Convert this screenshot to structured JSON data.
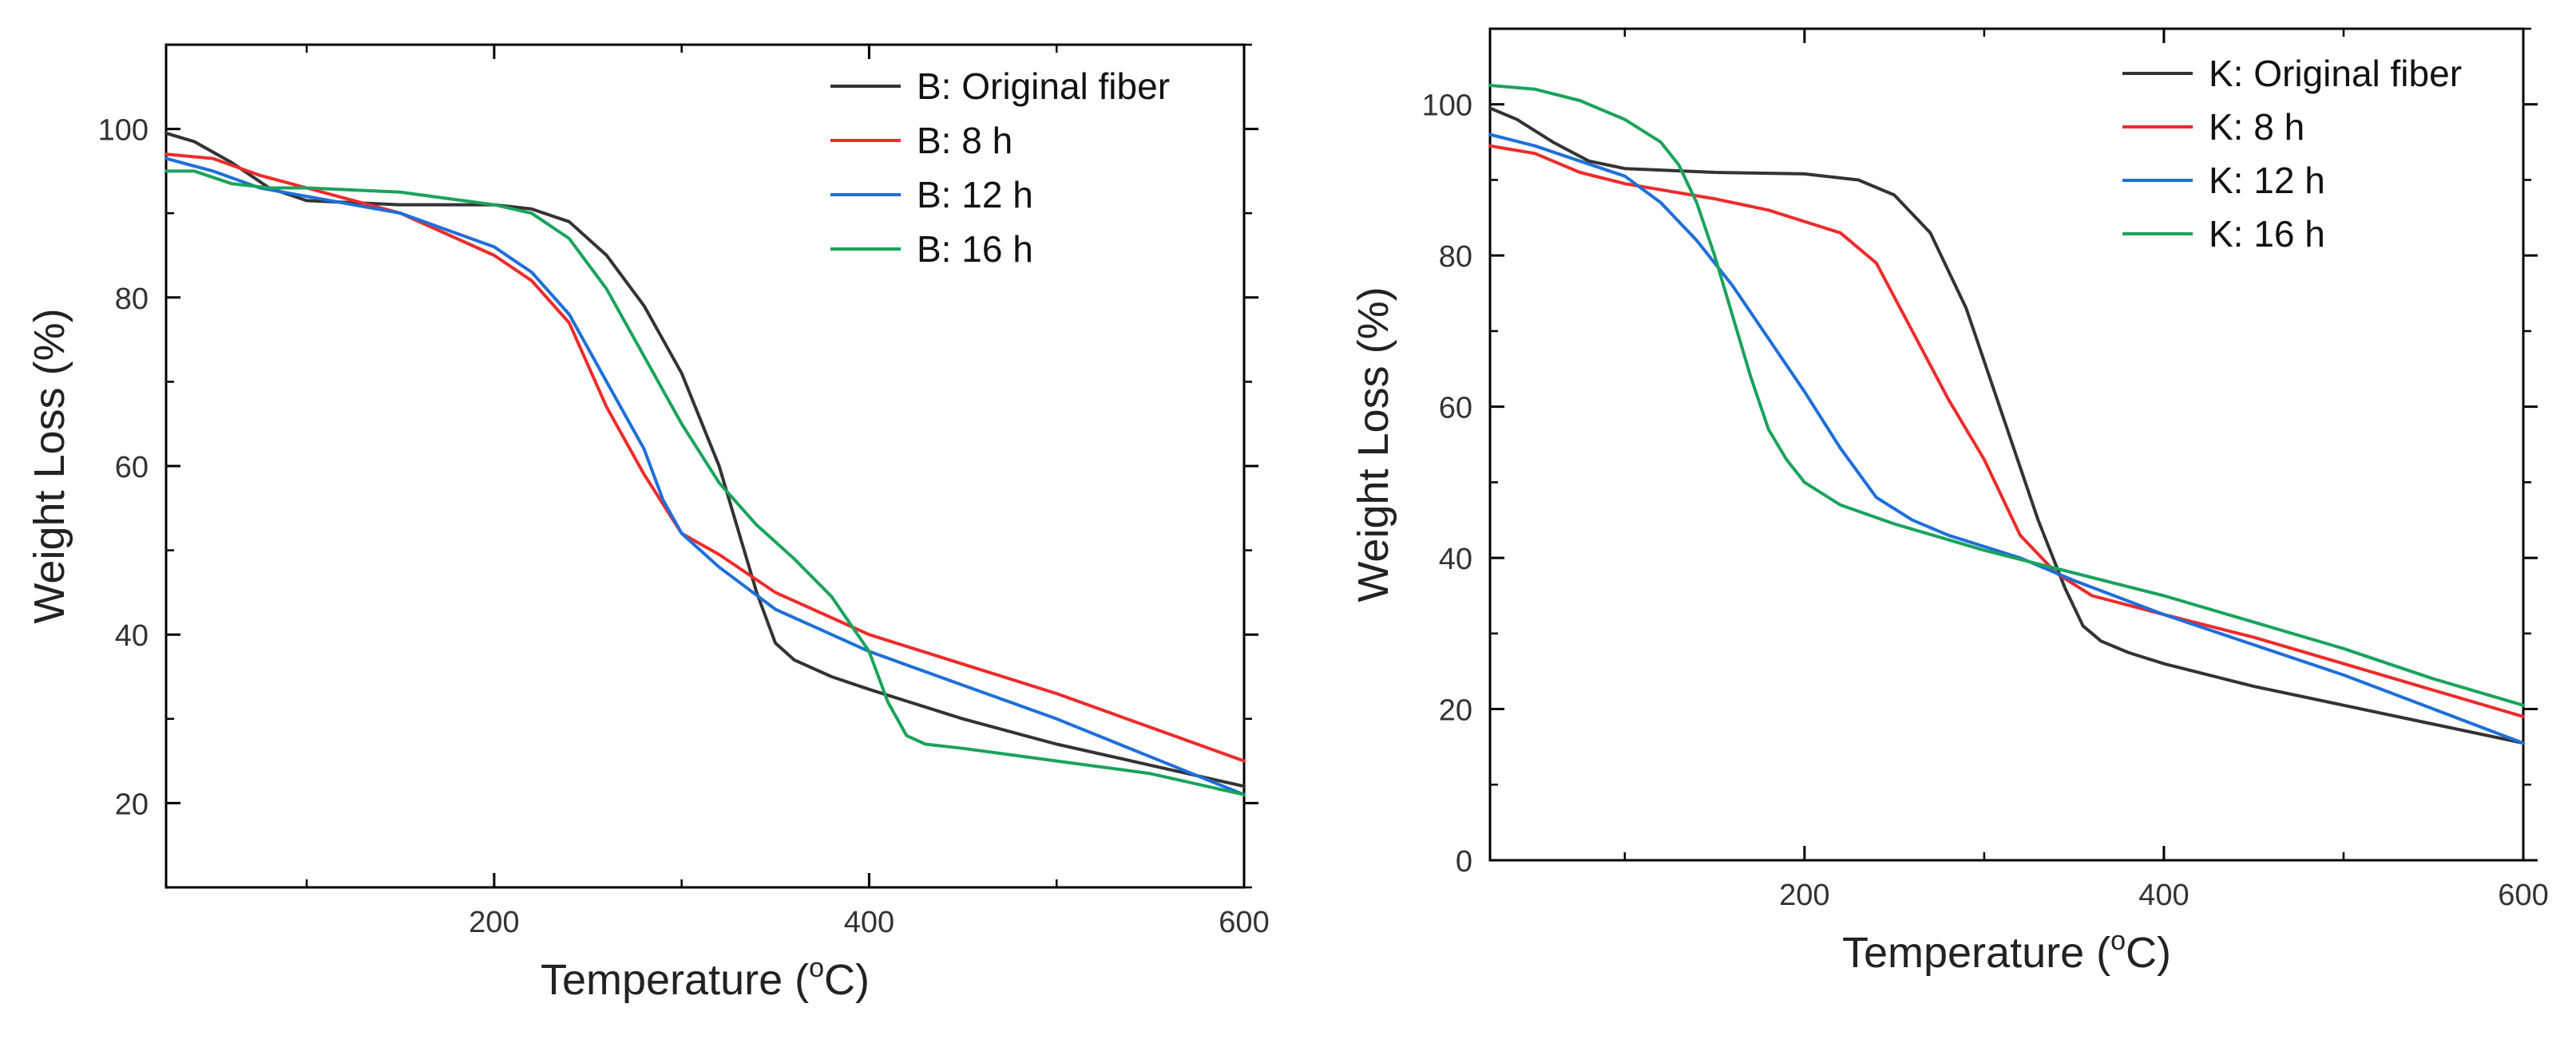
{
  "chart_data": [
    {
      "type": "line",
      "xlabel": "Temperature (",
      "xlabel_sup": "o",
      "xlabel_unit": "C)",
      "ylabel": "Weight Loss (%)",
      "xlim": [
        25,
        600
      ],
      "ylim": [
        10,
        110
      ],
      "x_ticks": [
        200,
        400,
        600
      ],
      "y_ticks": [
        20,
        40,
        60,
        80,
        100
      ],
      "x_tick_labels": [
        "200",
        "400",
        "600"
      ],
      "y_tick_labels": [
        "20",
        "40",
        "60",
        "80",
        "100"
      ],
      "grid": false,
      "legend_position": "top-right",
      "series": [
        {
          "name": "B: Original fiber",
          "color": "#333333",
          "x": [
            25,
            40,
            60,
            80,
            100,
            150,
            200,
            220,
            240,
            260,
            280,
            300,
            320,
            340,
            350,
            360,
            380,
            400,
            450,
            500,
            550,
            600
          ],
          "y": [
            99.5,
            98.5,
            96,
            93,
            91.5,
            91,
            91,
            90.5,
            89,
            85,
            79,
            71,
            60,
            45,
            39,
            37,
            35,
            33.5,
            30,
            27,
            24.5,
            22
          ]
        },
        {
          "name": "B: 8 h",
          "color": "#ee2b2b",
          "x": [
            25,
            50,
            75,
            100,
            150,
            200,
            220,
            240,
            260,
            280,
            300,
            320,
            350,
            400,
            450,
            500,
            550,
            600
          ],
          "y": [
            97,
            96.5,
            94.5,
            93,
            90,
            85,
            82,
            77,
            67,
            59,
            52,
            49.5,
            45,
            40,
            36.5,
            33,
            29,
            25
          ]
        },
        {
          "name": "B: 12 h",
          "color": "#1e6fd9",
          "x": [
            25,
            50,
            75,
            100,
            150,
            200,
            220,
            240,
            260,
            280,
            290,
            300,
            320,
            350,
            400,
            450,
            500,
            550,
            600
          ],
          "y": [
            96.5,
            95,
            93,
            92,
            90,
            86,
            83,
            78,
            70,
            62,
            56,
            52,
            48,
            43,
            38,
            34,
            30,
            25.5,
            21
          ]
        },
        {
          "name": "B: 16 h",
          "color": "#1aa35b",
          "x": [
            25,
            40,
            60,
            80,
            100,
            150,
            200,
            220,
            240,
            260,
            280,
            300,
            320,
            340,
            360,
            380,
            400,
            410,
            420,
            430,
            450,
            500,
            550,
            600
          ],
          "y": [
            95,
            95,
            93.5,
            93,
            93,
            92.5,
            91,
            90,
            87,
            81,
            73,
            65,
            58,
            53,
            49,
            44.5,
            38,
            32,
            28,
            27,
            26.5,
            25,
            23.5,
            21
          ]
        }
      ]
    },
    {
      "type": "line",
      "xlabel": "Temperature (",
      "xlabel_sup": "o",
      "xlabel_unit": "C)",
      "ylabel": "Weight Loss (%)",
      "xlim": [
        25,
        600
      ],
      "ylim": [
        0,
        110
      ],
      "x_ticks": [
        200,
        400,
        600
      ],
      "y_ticks": [
        0,
        20,
        40,
        60,
        80,
        100
      ],
      "x_tick_labels": [
        "200",
        "400",
        "600"
      ],
      "y_tick_labels": [
        "0",
        "20",
        "40",
        "60",
        "80",
        "100"
      ],
      "grid": false,
      "legend_position": "top-right",
      "series": [
        {
          "name": "K: Original fiber",
          "color": "#333333",
          "x": [
            25,
            40,
            60,
            80,
            100,
            150,
            200,
            230,
            250,
            270,
            290,
            310,
            330,
            345,
            355,
            365,
            380,
            400,
            450,
            500,
            550,
            600
          ],
          "y": [
            99.5,
            98,
            95,
            92.5,
            91.5,
            91,
            90.8,
            90,
            88,
            83,
            73,
            59,
            45,
            36,
            31,
            29,
            27.5,
            26,
            23,
            20.5,
            18,
            15.5
          ]
        },
        {
          "name": "K: 8 h",
          "color": "#ee2b2b",
          "x": [
            25,
            50,
            75,
            100,
            150,
            180,
            200,
            220,
            240,
            260,
            280,
            300,
            320,
            340,
            360,
            400,
            450,
            500,
            550,
            600
          ],
          "y": [
            94.5,
            93.5,
            91,
            89.5,
            87.5,
            86,
            84.5,
            83,
            79,
            70,
            61,
            53,
            43,
            38,
            35,
            32.5,
            29.5,
            26,
            22.5,
            19
          ]
        },
        {
          "name": "K: 12 h",
          "color": "#1e6fd9",
          "x": [
            25,
            50,
            75,
            100,
            120,
            140,
            160,
            180,
            200,
            220,
            240,
            260,
            280,
            300,
            320,
            350,
            400,
            450,
            500,
            550,
            600
          ],
          "y": [
            96,
            94.5,
            92.5,
            90.5,
            87,
            82,
            76,
            69,
            62,
            54.5,
            48,
            45,
            43,
            41.5,
            40,
            37,
            32.5,
            28.5,
            24.5,
            20,
            15.5
          ]
        },
        {
          "name": "K: 16 h",
          "color": "#1aa35b",
          "x": [
            25,
            50,
            75,
            100,
            120,
            130,
            140,
            150,
            160,
            170,
            180,
            190,
            200,
            220,
            250,
            300,
            350,
            400,
            450,
            500,
            550,
            600
          ],
          "y": [
            102.5,
            102,
            100.5,
            98,
            95,
            92,
            87,
            80,
            72,
            64,
            57,
            53,
            50,
            47,
            44.5,
            41,
            38,
            35,
            31.5,
            28,
            24,
            20.5
          ]
        }
      ]
    }
  ]
}
